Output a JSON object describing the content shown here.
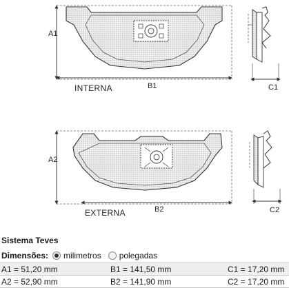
{
  "drawing": {
    "top_label": "INTERNA",
    "bottom_label": "EXTERNA",
    "dim_a1": "A1",
    "dim_b1": "B1",
    "dim_c1": "C1",
    "dim_a2": "A2",
    "dim_b2": "B2",
    "dim_c2": "C2"
  },
  "system": {
    "title": "Sistema Teves"
  },
  "units": {
    "label": "Dimensões:",
    "options": [
      {
        "label": "milimetros",
        "selected": true
      },
      {
        "label": "polegadas",
        "selected": false
      }
    ]
  },
  "dimensions": {
    "rows": [
      [
        "A1 = 51,20 mm",
        "B1 = 141,50 mm",
        "C1 = 17,20 mm"
      ],
      [
        "A2 = 52,90 mm",
        "B2 = 141,90 mm",
        "C2 = 17,20 mm"
      ]
    ]
  },
  "colors": {
    "line": "#333333",
    "stipple": "#c8c8c8",
    "row_shade": "#eeeeee"
  }
}
